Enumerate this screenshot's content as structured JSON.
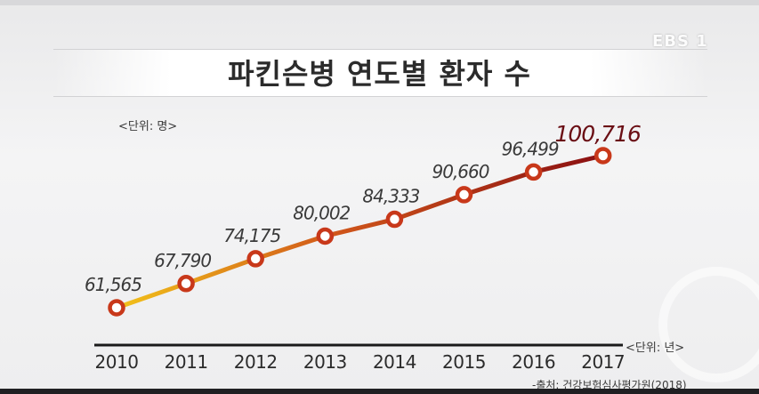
{
  "logo": "EBS 1",
  "title": "파킨슨병 연도별 환자 수",
  "y_unit": "<단위: 명>",
  "x_unit": "<단위: 년>",
  "source": "-출처: 건강보험심사평가원(2018)",
  "colors": {
    "line_start": "#f2c21a",
    "line_end": "#8a0f12",
    "marker": "#c8381a",
    "highlight": "#6a0e14",
    "axis": "#1a1a1a"
  },
  "chart_data": {
    "type": "line",
    "title": "파킨슨병 연도별 환자 수",
    "x": [
      "2010",
      "2011",
      "2012",
      "2013",
      "2014",
      "2015",
      "2016",
      "2017"
    ],
    "values": [
      61565,
      67790,
      74175,
      80002,
      84333,
      90660,
      96499,
      100716
    ],
    "value_labels": [
      "61,565",
      "67,790",
      "74,175",
      "80,002",
      "84,333",
      "90,660",
      "96,499",
      "100,716"
    ],
    "xlabel": "<단위: 년>",
    "ylabel": "<단위: 명>",
    "grid": false,
    "highlight_last": true
  }
}
